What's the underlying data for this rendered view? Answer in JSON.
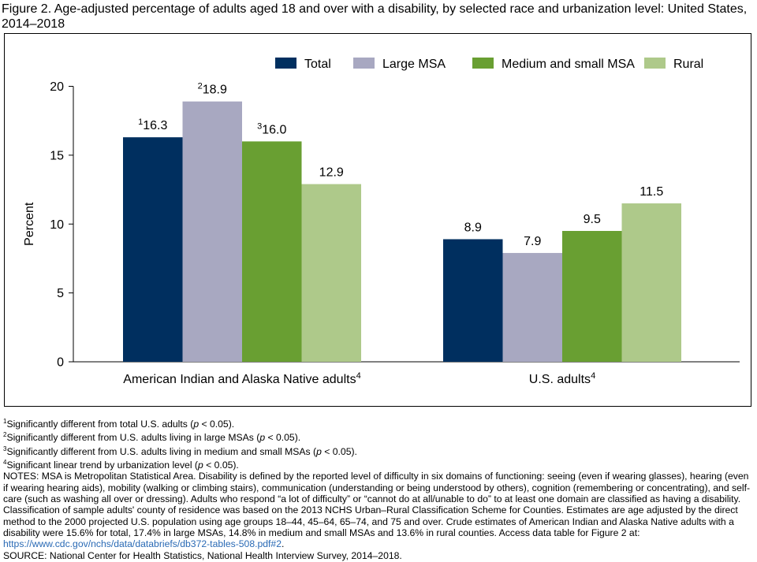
{
  "title": "Figure 2. Age-adjusted percentage of adults aged 18 and over with a disability, by selected race and urbanization level: United States, 2014–2018",
  "chart_data": {
    "type": "bar",
    "ylabel": "Percent",
    "ylim": [
      0,
      20
    ],
    "yticks": [
      0,
      5,
      10,
      15,
      20
    ],
    "legend_position": "top-right",
    "categories": [
      {
        "label": "American Indian and Alaska Native adults",
        "sup": "4"
      },
      {
        "label": "U.S. adults",
        "sup": "4"
      }
    ],
    "series": [
      {
        "name": "Total",
        "color": "#002f5f",
        "values": [
          16.3,
          8.9
        ],
        "labels": [
          "16.3",
          "8.9"
        ],
        "sups": [
          "1",
          ""
        ]
      },
      {
        "name": "Large MSA",
        "color": "#a8a8c1",
        "values": [
          18.9,
          7.9
        ],
        "labels": [
          "18.9",
          "7.9"
        ],
        "sups": [
          "2",
          ""
        ]
      },
      {
        "name": "Medium and small MSA",
        "color": "#699f32",
        "values": [
          16.0,
          9.5
        ],
        "labels": [
          "16.0",
          "9.5"
        ],
        "sups": [
          "3",
          ""
        ]
      },
      {
        "name": "Rural",
        "color": "#aec98a",
        "values": [
          12.9,
          11.5
        ],
        "labels": [
          "12.9",
          "11.5"
        ],
        "sups": [
          "",
          ""
        ]
      }
    ]
  },
  "footnotes": {
    "fn1": {
      "sup": "1",
      "pre": "Significantly different from total U.S. adults (",
      "p": "p",
      "post": " < 0.05)."
    },
    "fn2": {
      "sup": "2",
      "pre": "Significantly different from U.S. adults living in large MSAs (",
      "p": "p",
      "post": " < 0.05)."
    },
    "fn3": {
      "sup": "3",
      "pre": "Significantly different from U.S. adults living in medium and small MSAs (",
      "p": "p",
      "post": " < 0.05)."
    },
    "fn4": {
      "sup": "4",
      "pre": "Significant linear trend by urbanization level (",
      "p": "p",
      "post": " < 0.05)."
    }
  },
  "notes": {
    "text": "NOTES: MSA is Metropolitan Statistical Area. Disability is defined by the reported level of difficulty in six domains of functioning: seeing (even if wearing glasses), hearing (even if wearing hearing aids), mobility (walking or climbing stairs), communication (understanding or being understood by others), cognition (remembering or concentrating), and self-care (such as washing all over or dressing). Adults who respond “a lot of difficulty” or “cannot do at all/unable to do” to at least one domain are classified as having a disability. Classification of sample adults' county of residence was based on the 2013 NCHS Urban–Rural Classification Scheme for Counties. Estimates are age adjusted by the direct method to the 2000 projected U.S. population using age groups 18–44, 45–64, 65–74, and 75 and over. Crude estimates of American Indian and Alaska Native adults with a disability were 15.6% for total, 17.4% in large MSAs, 14.8% in medium and small MSAs and 13.6% in rural counties. Access data table for Figure 2 at: ",
    "link": "https://www.cdc.gov/nchs/data/databriefs/db372-tables-508.pdf#2",
    "after": "."
  },
  "source": "SOURCE: National Center for Health Statistics, National Health Interview Survey, 2014–2018."
}
